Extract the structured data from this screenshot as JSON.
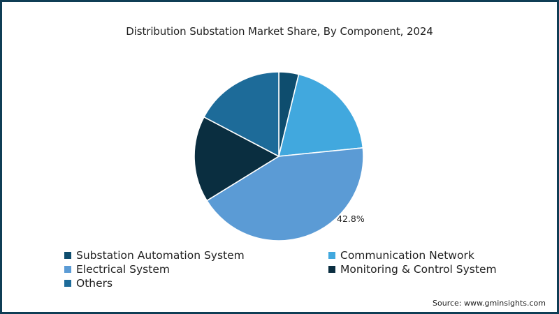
{
  "chart_data": {
    "type": "pie",
    "title": "Distribution Substation Market Share, By Component, 2024",
    "categories": [
      "Substation Automation System",
      "Communication Network",
      "Electrical System",
      "Monitoring & Control System",
      "Others"
    ],
    "values": [
      3.8,
      19.6,
      42.8,
      16.5,
      17.3
    ],
    "unit": "%",
    "colors": [
      "#0e4d6e",
      "#41a8de",
      "#5b9bd5",
      "#0a2e40",
      "#1d6b99"
    ],
    "data_labels": [
      {
        "category": "Electrical System",
        "text": "42.8%"
      }
    ],
    "start_angle_deg": 0,
    "direction": "clockwise",
    "legend_position": "bottom",
    "source": "Source: www.gminsights.com"
  },
  "header": {
    "title": "Distribution Substation Market Share, By Component, 2024"
  },
  "labels": {
    "electrical": "42.8%"
  },
  "legend": {
    "items": [
      {
        "label": "Substation Automation System",
        "color": "#0e4d6e"
      },
      {
        "label": "Communication Network",
        "color": "#41a8de"
      },
      {
        "label": "Electrical System",
        "color": "#5b9bd5"
      },
      {
        "label": "Monitoring & Control System",
        "color": "#0a2e40"
      },
      {
        "label": "Others",
        "color": "#1d6b99"
      }
    ]
  },
  "footer": {
    "source": "Source: www.gminsights.com"
  }
}
